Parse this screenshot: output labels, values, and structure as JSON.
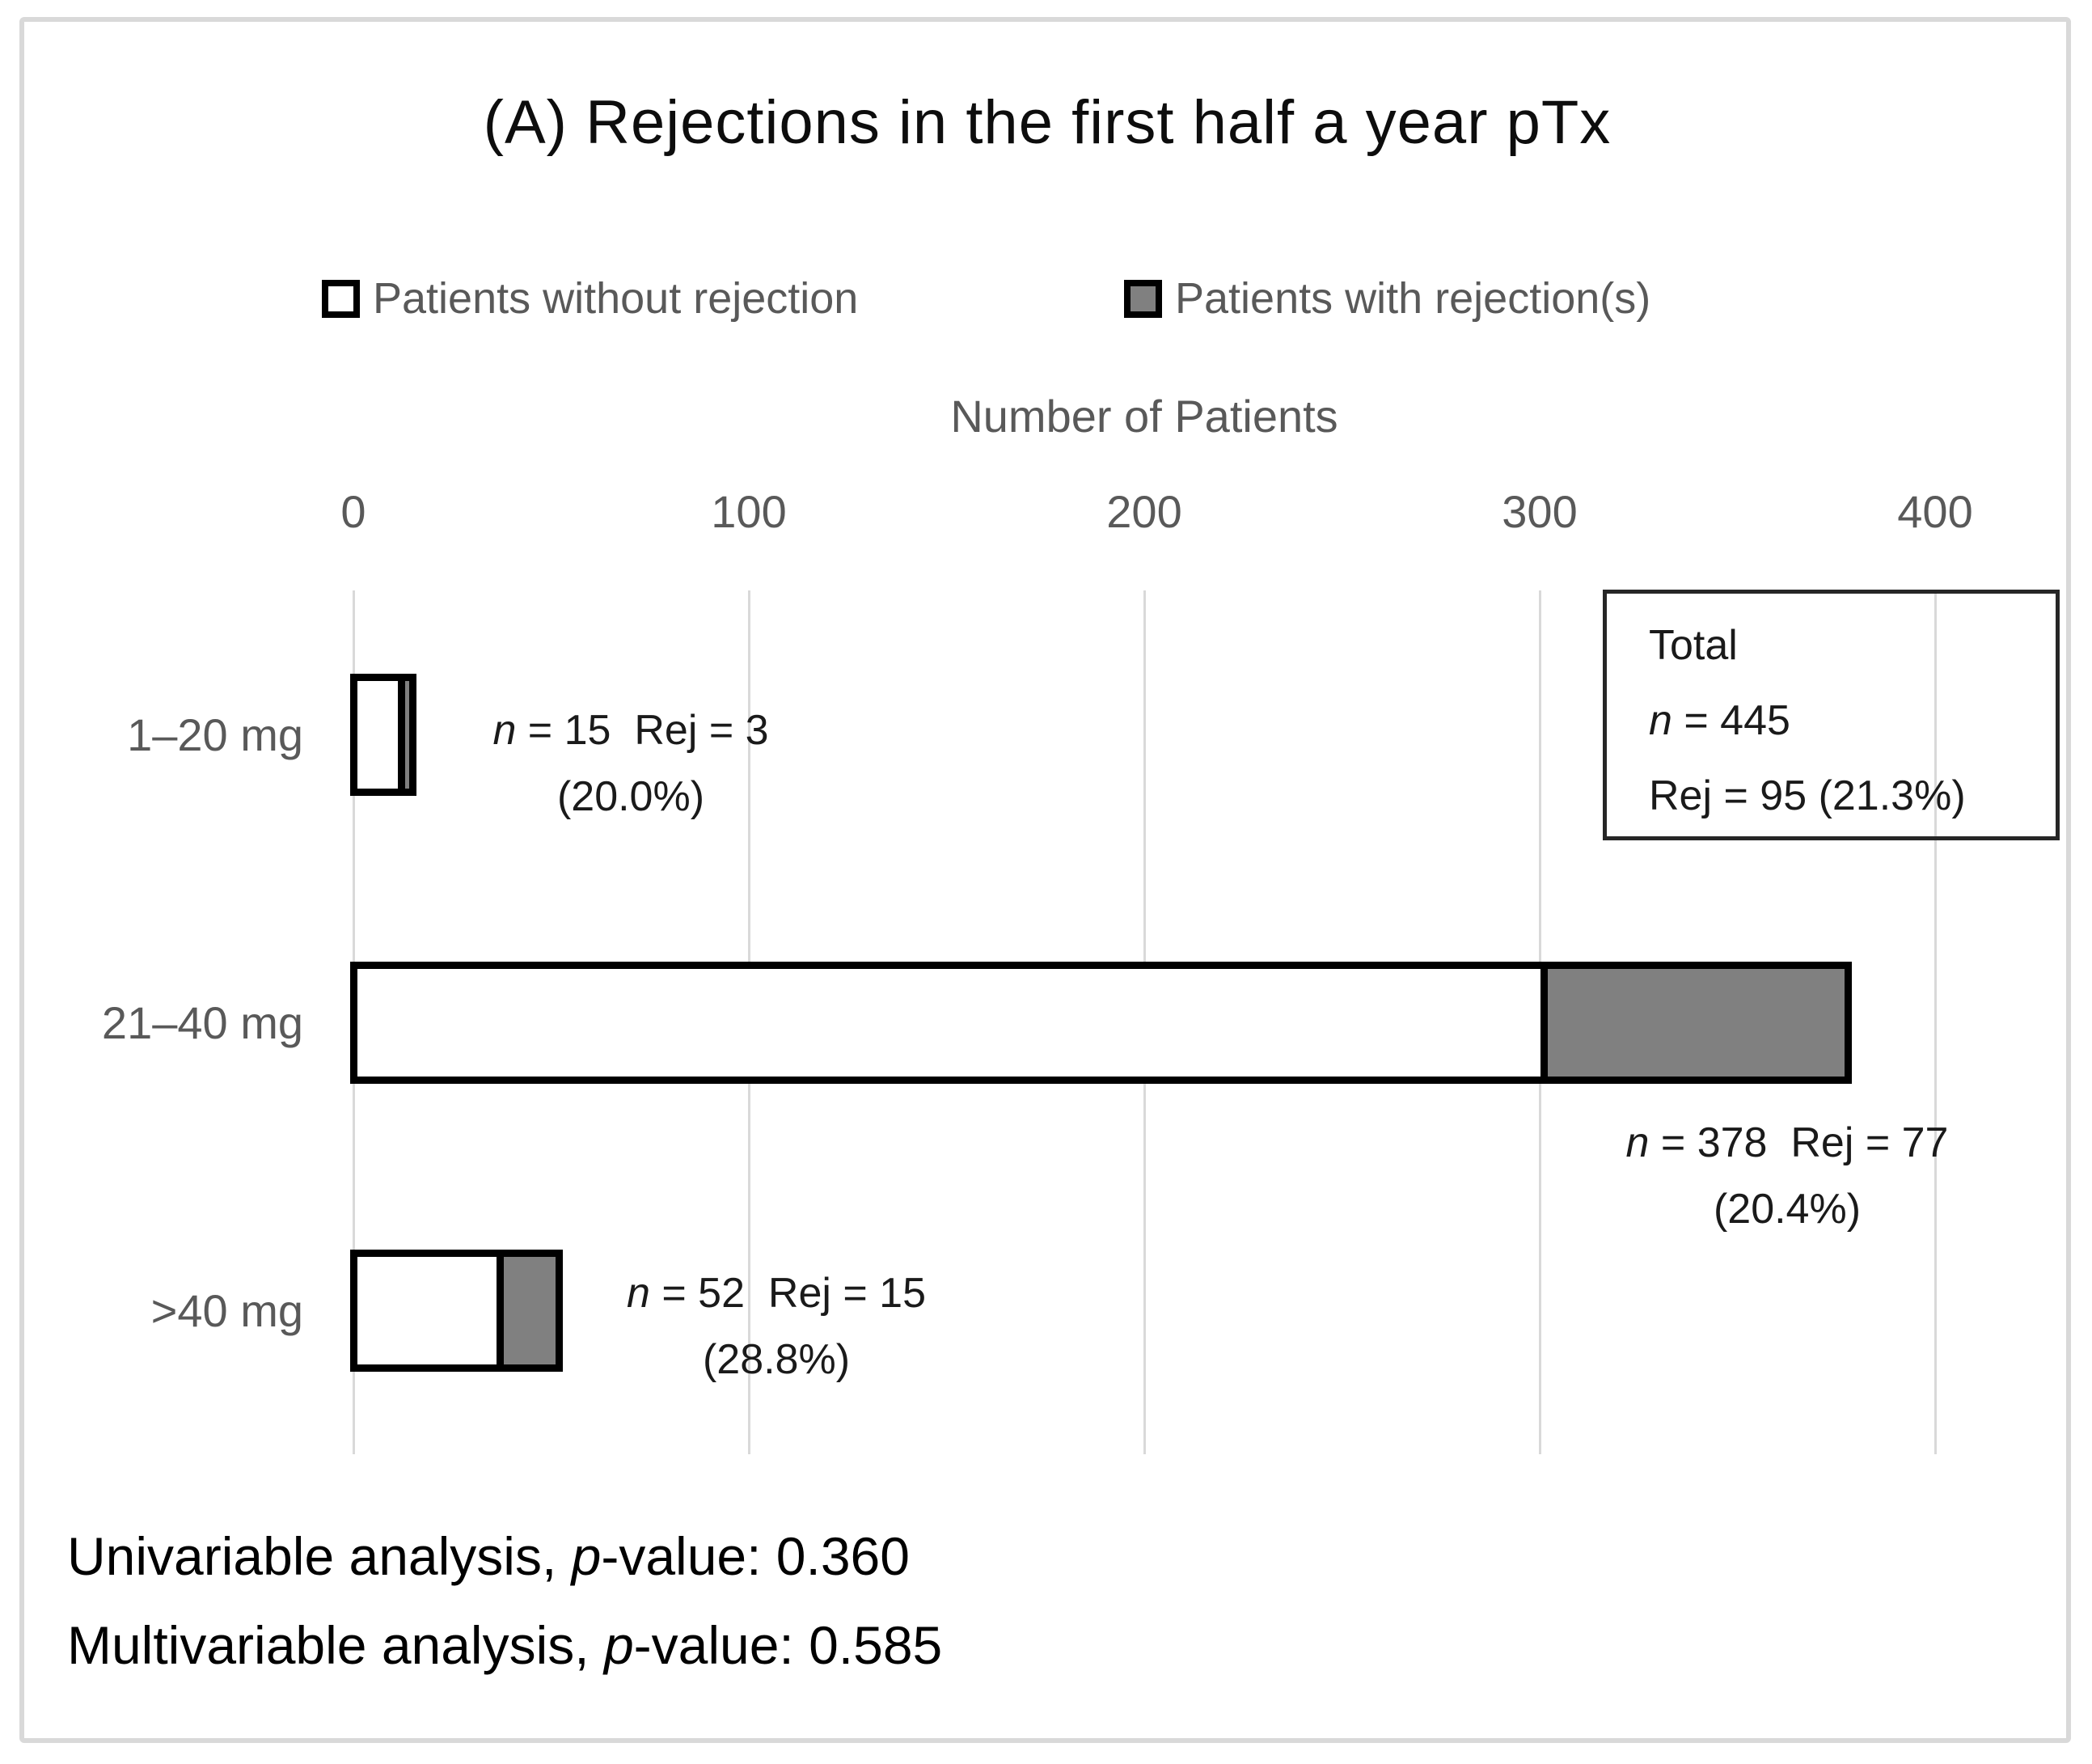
{
  "figure": {
    "title": "(A) Rejections in the first half a year pTx",
    "axis_title": "Number of Patients",
    "total_box": {
      "line1": "Total",
      "line2_italic": "n",
      "line2_rest": " = 445",
      "line3": "Rej = 95 (21.3%)"
    },
    "footnotes": [
      {
        "prefix": "Univariable analysis, ",
        "italic": "p",
        "suffix": "-value: 0.360"
      },
      {
        "prefix": "Multivariable analysis, ",
        "italic": "p",
        "suffix": "-value: 0.585"
      }
    ]
  },
  "legend": {
    "items": [
      {
        "label": "Patients without rejection",
        "color": "#ffffff"
      },
      {
        "label": "Patients with rejection(s)",
        "color": "#808080"
      }
    ]
  },
  "colors": {
    "with_rejection_fill": "#808080",
    "without_rejection_fill": "#ffffff",
    "bar_border": "#000000",
    "gridline": "#d9d9d9",
    "muted_text": "#595959",
    "dark_text": "#1a1a1a"
  },
  "chart_data": {
    "type": "bar",
    "orientation": "horizontal",
    "stacked": true,
    "title": "(A) Rejections in the first half a year pTx",
    "xlabel": "Number of Patients",
    "ylabel": "",
    "xlim": [
      0,
      400
    ],
    "xticks": [
      0,
      100,
      200,
      300,
      400
    ],
    "grid": true,
    "legend_position": "top",
    "categories": [
      "1–20 mg",
      "21–40 mg",
      ">40 mg"
    ],
    "series": [
      {
        "name": "Patients without rejection",
        "color": "#ffffff",
        "values": [
          12,
          301,
          37
        ]
      },
      {
        "name": "Patients with rejection(s)",
        "color": "#808080",
        "values": [
          3,
          77,
          15
        ]
      }
    ],
    "bar_annotations": [
      {
        "n": 15,
        "rej": 3,
        "pct": "20.0%",
        "line1_italic": "n",
        "line1_rest": " = 15  Rej = 3",
        "line2": "(20.0%)"
      },
      {
        "n": 378,
        "rej": 77,
        "pct": "20.4%",
        "line1_italic": "n",
        "line1_rest": " = 378  Rej = 77",
        "line2": "(20.4%)"
      },
      {
        "n": 52,
        "rej": 15,
        "pct": "28.8%",
        "line1_italic": "n",
        "line1_rest": " = 52  Rej = 15",
        "line2": "(28.8%)"
      }
    ],
    "total": {
      "n": 445,
      "rej": 95,
      "pct": "21.3%"
    },
    "p_values": {
      "univariable": "0.360",
      "multivariable": "0.585"
    }
  }
}
